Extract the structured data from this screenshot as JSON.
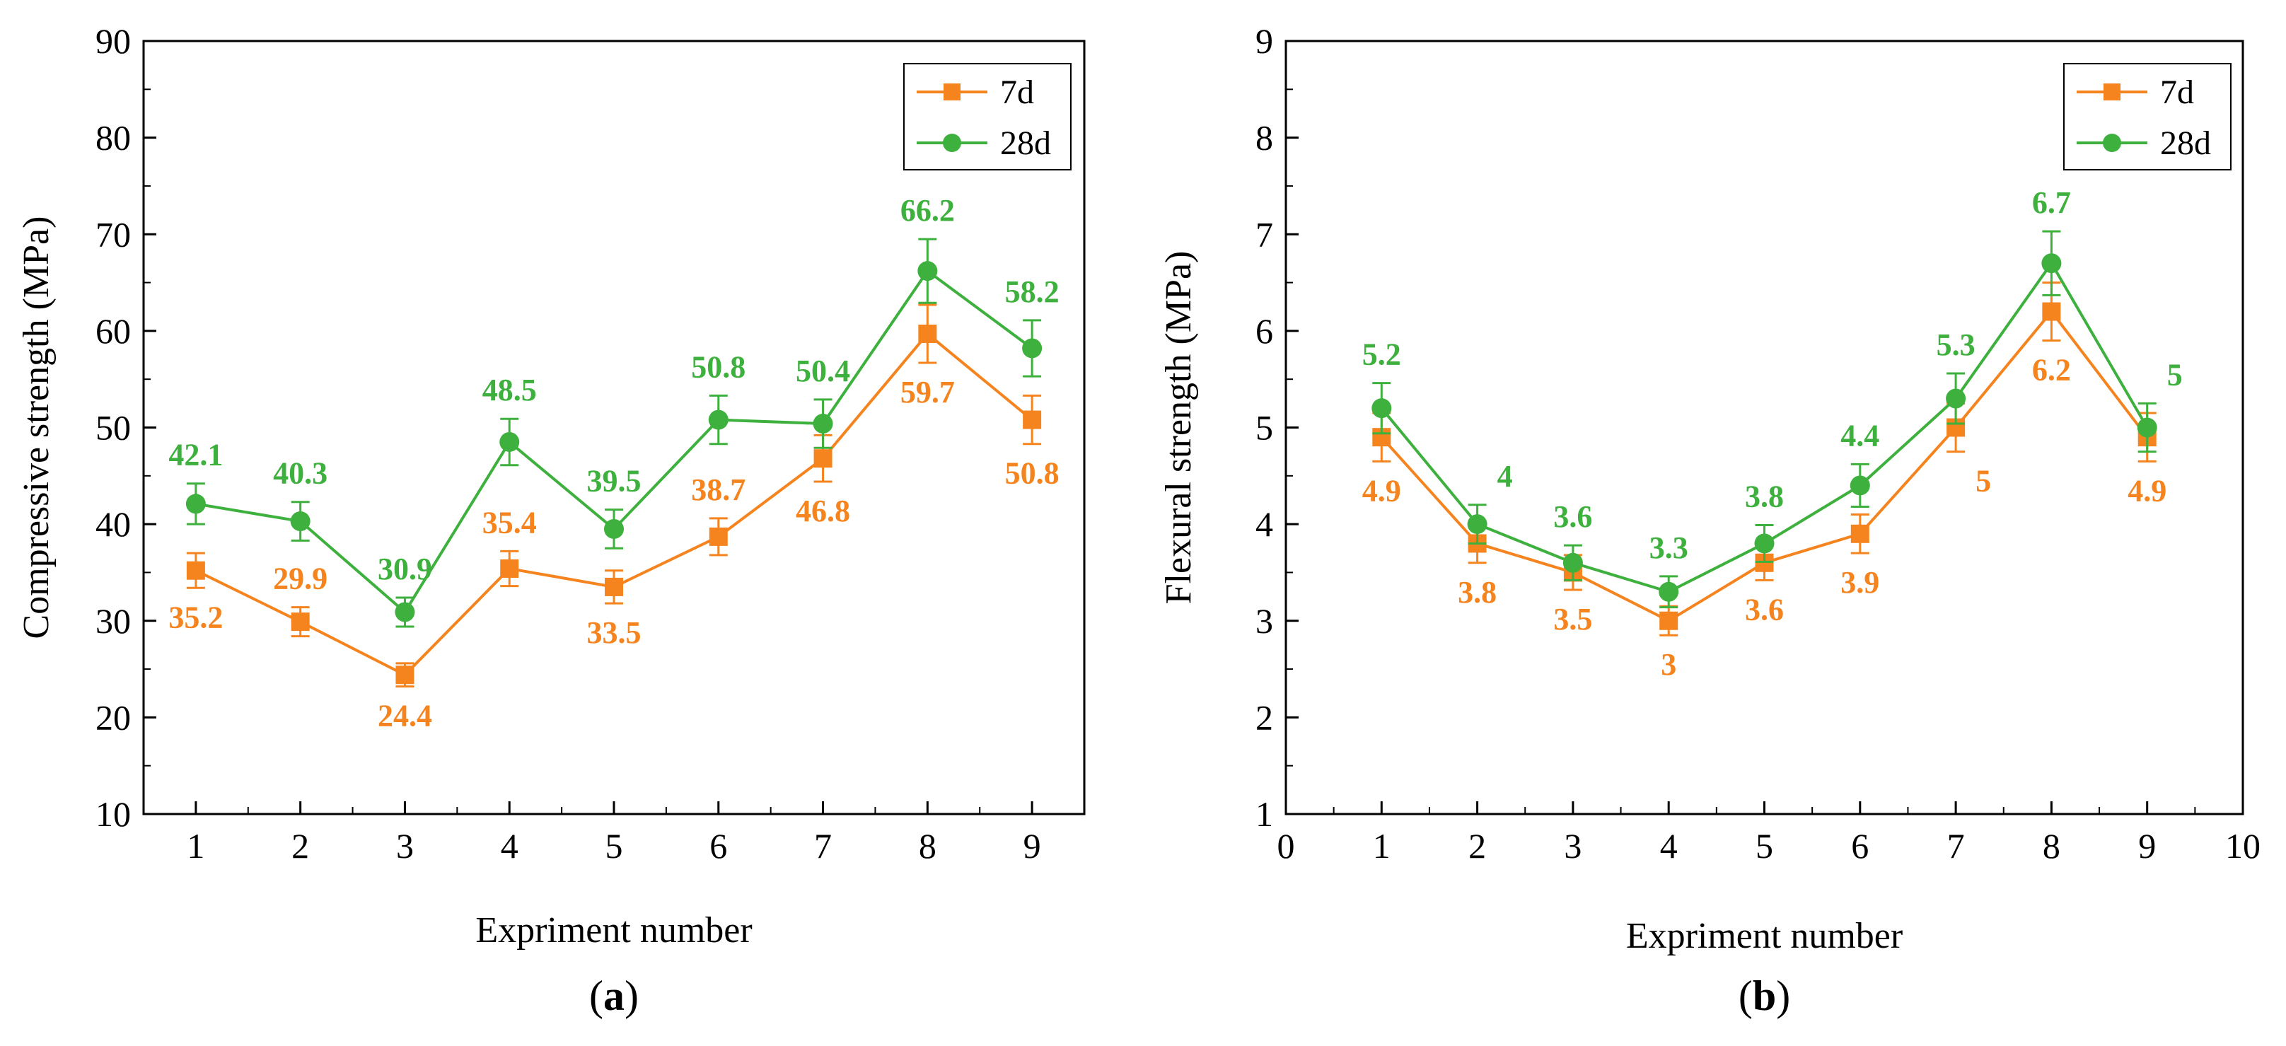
{
  "colors": {
    "7d": "#F5841F",
    "28d": "#3DB03D",
    "axis": "#000000"
  },
  "chart_data": [
    {
      "type": "line",
      "panel_label": "a",
      "xlabel": "Expriment number",
      "ylabel": "Compressive strength (MPa)",
      "xlim": [
        0.5,
        9.5
      ],
      "ylim": [
        10,
        90
      ],
      "xticks": [
        1,
        2,
        3,
        4,
        5,
        6,
        7,
        8,
        9
      ],
      "yticks": [
        10,
        20,
        30,
        40,
        50,
        60,
        70,
        80,
        90
      ],
      "legend": "top-right",
      "x": [
        1,
        2,
        3,
        4,
        5,
        6,
        7,
        8,
        9
      ],
      "series": [
        {
          "name": "7d",
          "key": "7d",
          "marker": "square",
          "values": [
            35.2,
            29.9,
            24.4,
            35.4,
            33.5,
            38.7,
            46.8,
            59.7,
            50.8
          ],
          "errors": [
            1.8,
            1.5,
            1.2,
            1.8,
            1.7,
            1.9,
            2.4,
            3.0,
            2.5
          ],
          "label_pos": [
            "below",
            "above",
            "below",
            "above",
            "below",
            "above",
            "below",
            "below",
            "below"
          ]
        },
        {
          "name": "28d",
          "key": "28d",
          "marker": "circle",
          "values": [
            42.1,
            40.3,
            30.9,
            48.5,
            39.5,
            50.8,
            50.4,
            66.2,
            58.2
          ],
          "errors": [
            2.1,
            2.0,
            1.5,
            2.4,
            2.0,
            2.5,
            2.5,
            3.3,
            2.9
          ],
          "label_pos": [
            "above",
            "above",
            "above",
            "above",
            "above",
            "above",
            "above",
            "above",
            "above"
          ]
        }
      ]
    },
    {
      "type": "line",
      "panel_label": "b",
      "xlabel": "Expriment number",
      "ylabel": "Flexural strength (MPa)",
      "xlim": [
        0,
        10
      ],
      "ylim": [
        1,
        9
      ],
      "xticks": [
        0,
        1,
        2,
        3,
        4,
        5,
        6,
        7,
        8,
        9,
        10
      ],
      "yticks": [
        1,
        2,
        3,
        4,
        5,
        6,
        7,
        8,
        9
      ],
      "legend": "top-right",
      "x": [
        1,
        2,
        3,
        4,
        5,
        6,
        7,
        8,
        9
      ],
      "series": [
        {
          "name": "7d",
          "key": "7d",
          "marker": "square",
          "values": [
            4.9,
            3.8,
            3.5,
            3,
            3.6,
            3.9,
            5,
            6.2,
            4.9
          ],
          "errors": [
            0.25,
            0.2,
            0.18,
            0.15,
            0.18,
            0.2,
            0.25,
            0.3,
            0.25
          ],
          "label_pos": [
            "below",
            "below",
            "below",
            "below",
            "below",
            "below",
            "below-right",
            "below",
            "below"
          ]
        },
        {
          "name": "28d",
          "key": "28d",
          "marker": "circle",
          "values": [
            5.2,
            4,
            3.6,
            3.3,
            3.8,
            4.4,
            5.3,
            6.7,
            5
          ],
          "errors": [
            0.26,
            0.2,
            0.18,
            0.16,
            0.19,
            0.22,
            0.26,
            0.33,
            0.25
          ],
          "label_pos": [
            "above",
            "above-right",
            "above",
            "above",
            "above",
            "above",
            "above",
            "above",
            "above-right"
          ]
        }
      ]
    }
  ]
}
